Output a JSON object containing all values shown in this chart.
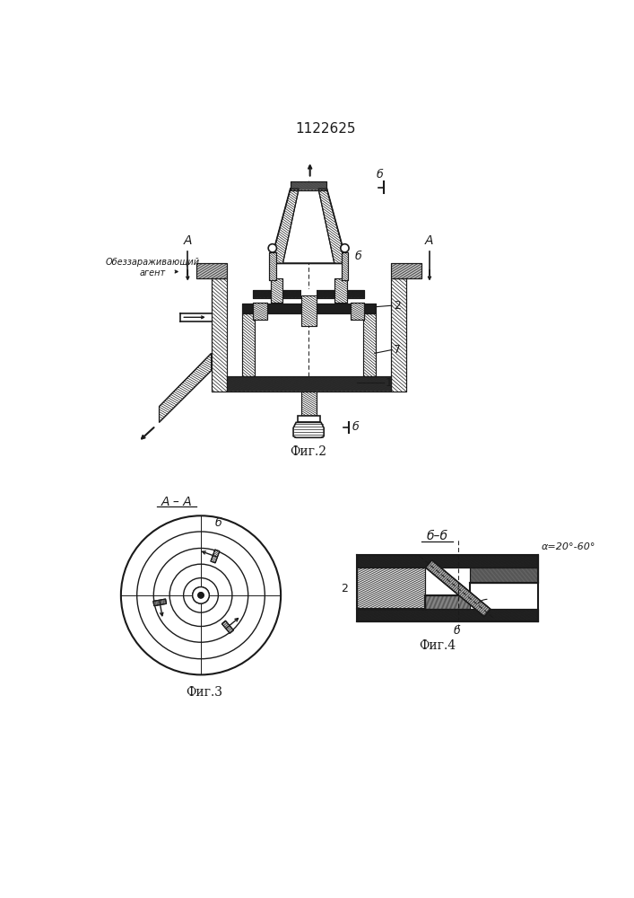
{
  "title": "1122625",
  "fig2_label": "Фиг.2",
  "fig3_label": "Фиг.3",
  "fig4_label": "Фиг.4",
  "section_aa": "A – A",
  "section_bb": "б–б",
  "agent_text": "Обеззараживающий\nагент",
  "angle_text": "α=20°-60°",
  "bg_color": "#ffffff",
  "line_color": "#1a1a1a"
}
